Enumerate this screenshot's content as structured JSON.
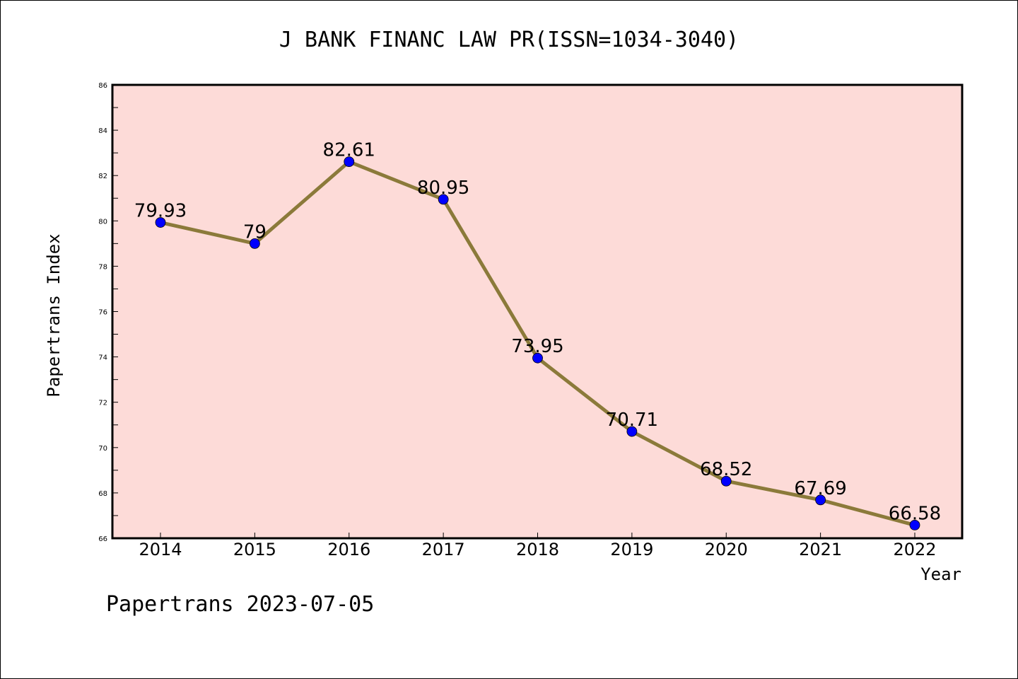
{
  "chart_data": {
    "type": "line",
    "title": "J BANK FINANC LAW PR(ISSN=1034-3040)",
    "xlabel": "Year",
    "ylabel": "Papertrans Index",
    "categories": [
      "2014",
      "2015",
      "2016",
      "2017",
      "2018",
      "2019",
      "2020",
      "2021",
      "2022"
    ],
    "series": [
      {
        "values": [
          79.93,
          79,
          82.61,
          80.95,
          73.95,
          70.71,
          68.52,
          67.69,
          66.58
        ],
        "labels": [
          "79.93",
          "79",
          "82.61",
          "80.95",
          "73.95",
          "70.71",
          "68.52",
          "67.69",
          "66.58"
        ]
      }
    ],
    "ylim": [
      66,
      86
    ],
    "yticks": [
      "66",
      "68",
      "70",
      "72",
      "74",
      "76",
      "78",
      "80",
      "82",
      "84",
      "86"
    ],
    "grid": false,
    "colors": {
      "line": "#8b7a3a",
      "marker": "#0000ff",
      "plot_background": "#fddbd8"
    }
  },
  "footer": {
    "text": "Papertrans 2023-07-05"
  }
}
